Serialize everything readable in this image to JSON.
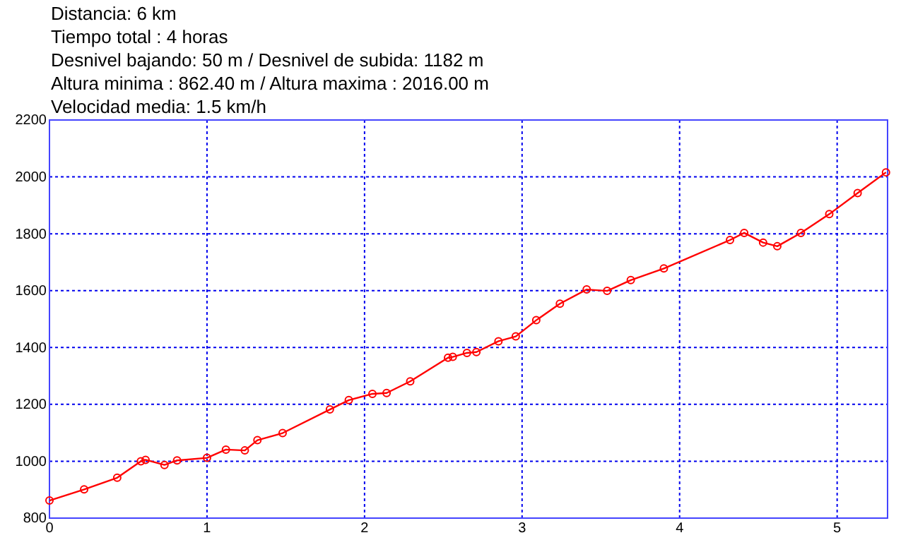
{
  "chart_data": {
    "type": "line",
    "annotations": [
      "Distancia: 6 km",
      "Tiempo total : 4 horas",
      "Desnivel bajando: 50 m / Desnivel de subida: 1182 m",
      "Altura minima : 862.40 m / Altura maxima : 2016.00 m",
      "Velocidad media: 1.5 km/h"
    ],
    "x": [
      0,
      0.22,
      0.43,
      0.58,
      0.61,
      0.73,
      0.81,
      1.0,
      1.12,
      1.24,
      1.32,
      1.48,
      1.78,
      1.9,
      2.05,
      2.14,
      2.29,
      2.53,
      2.56,
      2.65,
      2.71,
      2.85,
      2.96,
      3.09,
      3.24,
      3.41,
      3.54,
      3.69,
      3.9,
      4.32,
      4.41,
      4.53,
      4.62,
      4.77,
      4.95,
      5.13,
      5.31
    ],
    "series": [
      {
        "color": "#ff0000",
        "values": [
          862,
          901,
          942,
          1000,
          1005,
          987,
          1003,
          1012,
          1041,
          1038,
          1074,
          1099,
          1182,
          1215,
          1237,
          1240,
          1281,
          1364,
          1367,
          1381,
          1384,
          1422,
          1439,
          1496,
          1554,
          1604,
          1599,
          1637,
          1678,
          1778,
          1803,
          1769,
          1756,
          1803,
          1869,
          1943,
          2016
        ]
      }
    ],
    "xlim": [
      0,
      5.32
    ],
    "xticks": [
      0,
      1,
      2,
      3,
      4,
      5
    ],
    "ylim": [
      800,
      2200
    ],
    "yticks": [
      800,
      1000,
      1200,
      1400,
      1600,
      1800,
      2000,
      2200
    ],
    "grid": true,
    "marker": "circle",
    "line_style": "solid"
  }
}
